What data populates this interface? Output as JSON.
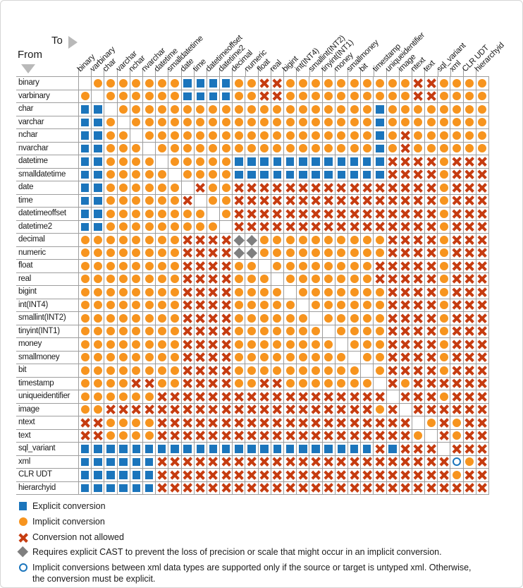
{
  "header": {
    "to_label": "To",
    "from_label": "From"
  },
  "chart_data": {
    "type": "heatmap",
    "title": "SQL Server data type conversion chart",
    "x_categories": [
      "binary",
      "varbinary",
      "char",
      "varchar",
      "nchar",
      "nvarchar",
      "datetime",
      "smalldatetime",
      "date",
      "time",
      "datetimeoffset",
      "datetime2",
      "decimal",
      "numeric",
      "float",
      "real",
      "bigint",
      "int(INT4)",
      "smallint(INT2)",
      "tinyint(INT1)",
      "money",
      "smallmoney",
      "bit",
      "timestamp",
      "uniqueidentifier",
      "image",
      "ntext",
      "text",
      "sql_variant",
      "xml",
      "CLR UDT",
      "hierarchyid"
    ],
    "y_categories": [
      "binary",
      "varbinary",
      "char",
      "varchar",
      "nchar",
      "nvarchar",
      "datetime",
      "smalldatetime",
      "date",
      "time",
      "datetimeoffset",
      "datetime2",
      "decimal",
      "numeric",
      "float",
      "real",
      "bigint",
      "int(INT4)",
      "smallint(INT2)",
      "tinyint(INT1)",
      "money",
      "smallmoney",
      "bit",
      "timestamp",
      "uniqueidentifier",
      "image",
      "ntext",
      "text",
      "sql_variant",
      "xml",
      "CLR UDT",
      "hierarchyid"
    ],
    "cell_codes": {
      "E": "explicit conversion (blue square)",
      "I": "implicit conversion (orange circle)",
      "X": "conversion not allowed (red x)",
      "D": "requires explicit CAST (gray diamond)",
      "O": "implicit only if untyped xml (open blue circle)",
      ".": "same type (blank)"
    },
    "matrix": [
      ".IIIIIIIEEEEIIXXIIIIIIIIIIXXIIII",
      "I.IIIIIIEEEEIIXXIIIIIIIIIIXXIIII",
      "EE.IIIIIIIIIIIIIIIIIIIIEIIIIIIII",
      "EEI.IIIIIIIIIIIIIIIIIIIEIIIIIIII",
      "EEII.IIIIIIIIIIIIIIIIIIEIXIIIIII",
      "EEIII.IIIIIIIIIIIIIIIIIEIXIIIIII",
      "EEIIII.IIIIIEEEEEEEEEEEEXXXXIXXX",
      "EEIIIII.IIIIEEEEEEEEEEEEXXXXIXXX",
      "EEIIIIII.XIIXXXXXXXXXXXXXXXXIXXX",
      "EEIIIIIIX.IIXXXXXXXXXXXXXXXXIXXX",
      "EEIIIIIIII.IXXXXXXXXXXXXXXXXIXXX",
      "EEIIIIIIIII.XXXXXXXXXXXXXXXXIXXX",
      "IIIIIIIIXXXXDDIIIIIIIIIIXXXXIXXX",
      "IIIIIIIIXXXXDDIIIIIIIIIIXXXXIXXX",
      "IIIIIIIIXXXXII.IIIIIIIIXXXXXIXXX",
      "IIIIIIIIXXXXIII.IIIIIIIXXXXXIXXX",
      "IIIIIIIIXXXXIIII.IIIIIIIXXXXIXXX",
      "IIIIIIIIXXXXIIIII.IIIIIIXXXXIXXX",
      "IIIIIIIIXXXXIIIIII.IIIIIXXXXIXXX",
      "IIIIIIIIXXXXIIIIIII.IIIIXXXXIXXX",
      "IIIIIIIIXXXXIIIIIIII.IIIXXXXIXXX",
      "IIIIIIIIXXXXIIIIIIIII.IIXXXXIXXX",
      "IIIIIIIIXXXXIIIIIIIIII.IXXXXIXXX",
      "IIIIXXIIXXXXIIXXIIIIIII.XIXXXXXX",
      "IIIIIIXXXXXXXXXXXXXXXXXX.XXXIXXX",
      "IIXXXXXXXXXXXXXXXXXXXXXIX.XXXXXX",
      "XXIIIIXXXXXXXXXXXXXXXXXXXX.IXIXX",
      "XXIIIIXXXXXXXXXXXXXXXXXXXXI.XIXX",
      "EEEEEEEEEEEEEEEEEEEEEEEXEXXX.XXX",
      "EEEEEEXXXXXXXXXXXXXXXXXXXXXXXOIX",
      "EEEEEEXXXXXXXXXXXXXXXXXXXXXXXIXX",
      "EEEEEEXXXXXXXXXXXXXXXXXXXXXXXXXX"
    ],
    "legend_position": "bottom-left",
    "grid": true
  },
  "legend": [
    {
      "symbol": "E",
      "label": "Explicit conversion"
    },
    {
      "symbol": "I",
      "label": "Implicit conversion"
    },
    {
      "symbol": "X",
      "label": "Conversion not allowed"
    },
    {
      "symbol": "D",
      "label": "Requires explicit CAST to prevent the loss of precision or scale that might occur in an implicit conversion."
    },
    {
      "symbol": "O",
      "label": "Implicit conversions between xml data types are supported only if the source or target is untyped xml. Otherwise, the conversion must be explicit."
    }
  ],
  "colors": {
    "explicit_blue": "#1b75bc",
    "implicit_orange": "#f7941e",
    "not_allowed_red": "#c63c10",
    "cast_diamond_gray": "#7f7f7f",
    "gridline_gray": "#9e9e9e"
  }
}
